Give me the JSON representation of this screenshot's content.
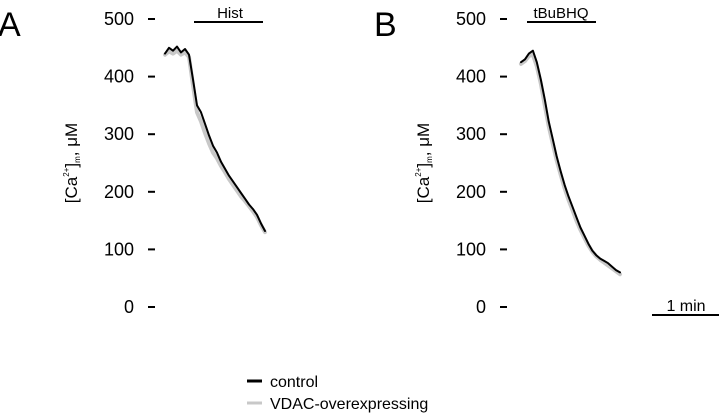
{
  "chart_data": [
    {
      "panel": "A",
      "type": "line",
      "stimulus": "Hist",
      "ylabel": {
        "prefix": "[Ca",
        "superscript": "2+",
        "bracket": "]",
        "subscript": "m",
        "suffix": ", μM"
      },
      "ylim": [
        0,
        500
      ],
      "yticks": [
        0,
        100,
        200,
        300,
        400,
        500
      ],
      "grid": false,
      "series": [
        {
          "name": "control",
          "color": "#000000",
          "x": [
            0,
            0.04,
            0.08,
            0.12,
            0.16,
            0.2,
            0.24,
            0.28,
            0.32,
            0.36,
            0.4,
            0.44,
            0.48,
            0.52,
            0.56,
            0.6,
            0.64,
            0.68,
            0.72,
            0.76,
            0.8,
            0.84,
            0.88,
            0.92,
            0.96,
            1.0
          ],
          "values": [
            440,
            450,
            445,
            452,
            442,
            448,
            438,
            395,
            350,
            338,
            318,
            298,
            280,
            268,
            252,
            240,
            228,
            218,
            208,
            198,
            188,
            178,
            170,
            160,
            145,
            132
          ]
        },
        {
          "name": "VDAC-overexpressing",
          "color": "#c8c8c8",
          "x": [
            0,
            0.04,
            0.08,
            0.12,
            0.16,
            0.2,
            0.24,
            0.28,
            0.32,
            0.36,
            0.4,
            0.44,
            0.48,
            0.52,
            0.56,
            0.6,
            0.64,
            0.68,
            0.72,
            0.76,
            0.8,
            0.84,
            0.88,
            0.92,
            0.96,
            1.0
          ],
          "values": [
            438,
            444,
            440,
            445,
            438,
            442,
            434,
            385,
            338,
            322,
            302,
            284,
            268,
            258,
            245,
            234,
            222,
            212,
            202,
            192,
            184,
            175,
            166,
            156,
            142,
            130
          ]
        }
      ]
    },
    {
      "panel": "B",
      "type": "line",
      "stimulus": "tBuBHQ",
      "ylabel": {
        "prefix": "[Ca",
        "superscript": "2+",
        "bracket": "]",
        "subscript": "m",
        "suffix": ", μM"
      },
      "ylim": [
        0,
        500
      ],
      "yticks": [
        0,
        100,
        200,
        300,
        400,
        500
      ],
      "grid": false,
      "series": [
        {
          "name": "control",
          "color": "#000000",
          "x": [
            0,
            0.04,
            0.08,
            0.12,
            0.16,
            0.2,
            0.24,
            0.28,
            0.32,
            0.36,
            0.4,
            0.44,
            0.48,
            0.52,
            0.56,
            0.6,
            0.64,
            0.68,
            0.72,
            0.76,
            0.8,
            0.84,
            0.88,
            0.92,
            0.96,
            1.0
          ],
          "values": [
            425,
            430,
            440,
            445,
            425,
            395,
            360,
            322,
            292,
            262,
            236,
            212,
            192,
            174,
            156,
            138,
            124,
            110,
            98,
            90,
            84,
            80,
            76,
            70,
            64,
            60
          ]
        },
        {
          "name": "VDAC-overexpressing",
          "color": "#c8c8c8",
          "x": [
            0,
            0.04,
            0.08,
            0.12,
            0.16,
            0.2,
            0.24,
            0.28,
            0.32,
            0.36,
            0.4,
            0.44,
            0.48,
            0.52,
            0.56,
            0.6,
            0.64,
            0.68,
            0.72,
            0.76,
            0.8,
            0.84,
            0.88,
            0.92,
            0.96,
            1.0
          ],
          "values": [
            422,
            427,
            436,
            438,
            418,
            388,
            350,
            314,
            284,
            255,
            230,
            206,
            186,
            168,
            150,
            134,
            120,
            107,
            96,
            88,
            82,
            77,
            72,
            67,
            62,
            57
          ]
        }
      ]
    }
  ],
  "scale_bar": {
    "label": "1 min"
  },
  "legend": [
    {
      "label": "control",
      "color": "#000000"
    },
    {
      "label": "VDAC-overexpressing",
      "color": "#c8c8c8"
    }
  ]
}
